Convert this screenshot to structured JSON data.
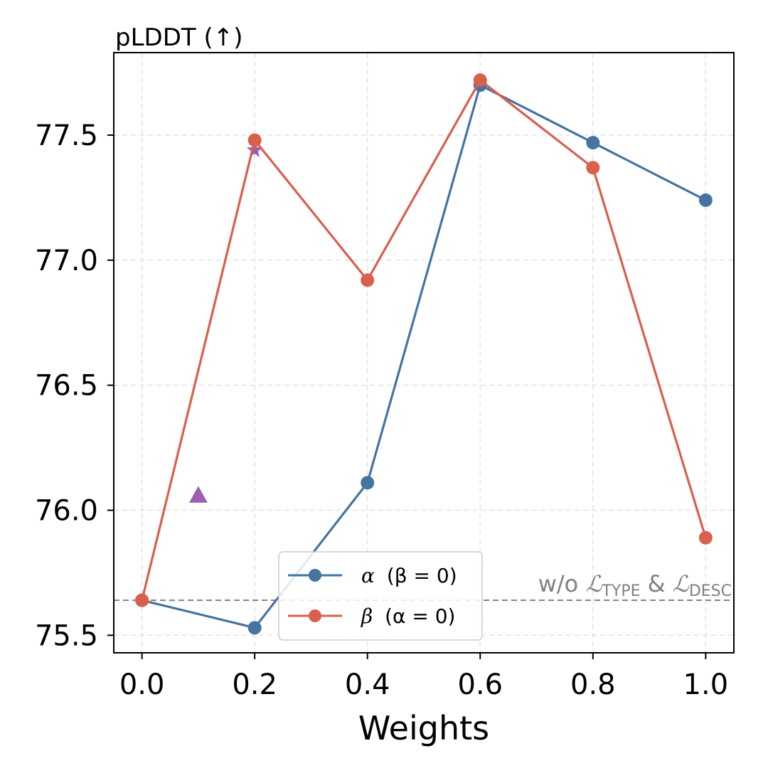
{
  "chart_data": {
    "type": "line",
    "title": "pLDDT (↑)",
    "xlabel": "Weights",
    "ylabel": "",
    "x": [
      0.0,
      0.2,
      0.4,
      0.6,
      0.8,
      1.0
    ],
    "xticks": [
      "0.0",
      "0.2",
      "0.4",
      "0.6",
      "0.8",
      "1.0"
    ],
    "yticks": [
      "75.5",
      "76.0",
      "76.5",
      "77.0",
      "77.5"
    ],
    "ytick_values": [
      75.5,
      76.0,
      76.5,
      77.0,
      77.5
    ],
    "xlim": [
      -0.05,
      1.05
    ],
    "ylim": [
      75.43,
      77.83
    ],
    "grid": true,
    "series": [
      {
        "name": "α (β = 0)",
        "color": "#4574a1",
        "values": [
          75.64,
          75.53,
          76.11,
          77.7,
          77.47,
          77.24
        ]
      },
      {
        "name": "β (α = 0)",
        "color": "#d95f4e",
        "values": [
          75.64,
          77.48,
          76.92,
          77.72,
          77.37,
          75.89
        ]
      }
    ],
    "extra_points": [
      {
        "marker": "triangle",
        "x": 0.1,
        "y": 76.06,
        "color": "#9b5fae"
      },
      {
        "marker": "star",
        "x": 0.2,
        "y": 77.44,
        "color": "#9b5fae"
      }
    ],
    "baseline": {
      "y": 75.64,
      "color": "#808080",
      "label_prefix": "w/o ",
      "label_l1": "ℒ",
      "label_sub1": "TYPE",
      "label_amp": " & ",
      "label_l2": "ℒ",
      "label_sub2": "DESC"
    },
    "legend": {
      "position": "bottom-center",
      "entries": [
        {
          "greek": "α",
          "cond": "(β = 0)"
        },
        {
          "greek": "β",
          "cond": "(α = 0)"
        }
      ]
    }
  }
}
